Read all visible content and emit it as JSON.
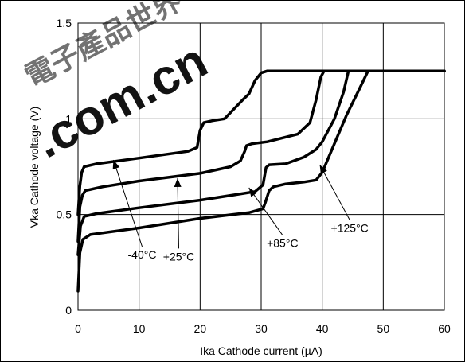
{
  "watermark": {
    "glyphs": "電子產品世界",
    "domain": ".com.cn",
    "color": "#e8252e",
    "glyph_color": "#b9b3b5"
  },
  "chart_data": {
    "type": "line",
    "title": "",
    "xlabel": "Ika Cathode current (µA)",
    "ylabel": "Vka Cathode voltage (V)",
    "xlim": [
      0,
      60
    ],
    "ylim": [
      0,
      1.5
    ],
    "x_ticks": [
      0,
      10,
      20,
      30,
      40,
      50,
      60
    ],
    "y_ticks": [
      0,
      0.5,
      1,
      1.5
    ],
    "x_tick_labels": [
      "0",
      "10",
      "20",
      "30",
      "40",
      "50",
      "60"
    ],
    "y_tick_labels": [
      "0",
      "0.5",
      "1",
      "1.5"
    ],
    "grid": true,
    "line_color": "#000000",
    "series": [
      {
        "name": "-40°C",
        "points": [
          [
            0,
            0.5
          ],
          [
            0.3,
            0.65
          ],
          [
            0.6,
            0.72
          ],
          [
            1,
            0.75
          ],
          [
            3,
            0.765
          ],
          [
            10,
            0.795
          ],
          [
            18,
            0.83
          ],
          [
            19.5,
            0.85
          ],
          [
            20,
            0.94
          ],
          [
            20.6,
            0.98
          ],
          [
            22,
            0.99
          ],
          [
            24,
            1.0
          ],
          [
            25.5,
            1.05
          ],
          [
            27,
            1.1
          ],
          [
            28,
            1.13
          ],
          [
            29,
            1.2
          ],
          [
            30,
            1.24
          ],
          [
            31,
            1.25
          ],
          [
            60,
            1.25
          ]
        ]
      },
      {
        "name": "+25°C",
        "points": [
          [
            0,
            0.36
          ],
          [
            0.3,
            0.54
          ],
          [
            0.7,
            0.6
          ],
          [
            1.2,
            0.625
          ],
          [
            4,
            0.645
          ],
          [
            10,
            0.675
          ],
          [
            20,
            0.715
          ],
          [
            25,
            0.75
          ],
          [
            26.6,
            0.78
          ],
          [
            27.3,
            0.83
          ],
          [
            27.6,
            0.86
          ],
          [
            28.5,
            0.87
          ],
          [
            31,
            0.88
          ],
          [
            36,
            0.92
          ],
          [
            38,
            0.98
          ],
          [
            39,
            1.1
          ],
          [
            39.8,
            1.22
          ],
          [
            40.3,
            1.25
          ],
          [
            60,
            1.25
          ]
        ]
      },
      {
        "name": "+85°C",
        "points": [
          [
            0,
            0.29
          ],
          [
            0.4,
            0.44
          ],
          [
            1,
            0.49
          ],
          [
            3,
            0.505
          ],
          [
            10,
            0.535
          ],
          [
            20,
            0.575
          ],
          [
            25,
            0.6
          ],
          [
            29,
            0.62
          ],
          [
            30.3,
            0.655
          ],
          [
            30.8,
            0.745
          ],
          [
            31.3,
            0.76
          ],
          [
            34,
            0.765
          ],
          [
            37,
            0.8
          ],
          [
            39,
            0.84
          ],
          [
            40,
            0.88
          ],
          [
            42,
            1.0
          ],
          [
            43.5,
            1.14
          ],
          [
            44.3,
            1.25
          ],
          [
            60,
            1.25
          ]
        ]
      },
      {
        "name": "+125°C",
        "points": [
          [
            0,
            0.1
          ],
          [
            0.3,
            0.3
          ],
          [
            0.8,
            0.37
          ],
          [
            2,
            0.395
          ],
          [
            10,
            0.43
          ],
          [
            20,
            0.48
          ],
          [
            28,
            0.51
          ],
          [
            30.3,
            0.53
          ],
          [
            30.7,
            0.565
          ],
          [
            31.3,
            0.625
          ],
          [
            32,
            0.645
          ],
          [
            34,
            0.66
          ],
          [
            37,
            0.67
          ],
          [
            39,
            0.68
          ],
          [
            40,
            0.72
          ],
          [
            42,
            0.87
          ],
          [
            44,
            1.02
          ],
          [
            46,
            1.15
          ],
          [
            47.5,
            1.25
          ],
          [
            60,
            1.25
          ]
        ]
      }
    ],
    "annotations": [
      {
        "text": "-40°C",
        "x": 10.5,
        "y": 0.27,
        "points_to": [
          5.8,
          0.785
        ]
      },
      {
        "text": "+25°C",
        "x": 16.5,
        "y": 0.26,
        "points_to": [
          16.3,
          0.69
        ]
      },
      {
        "text": "+85°C",
        "x": 33.5,
        "y": 0.33,
        "points_to": [
          28.0,
          0.64
        ]
      },
      {
        "text": "+125°C",
        "x": 44.5,
        "y": 0.41,
        "points_to": [
          39.6,
          0.76
        ]
      }
    ]
  }
}
